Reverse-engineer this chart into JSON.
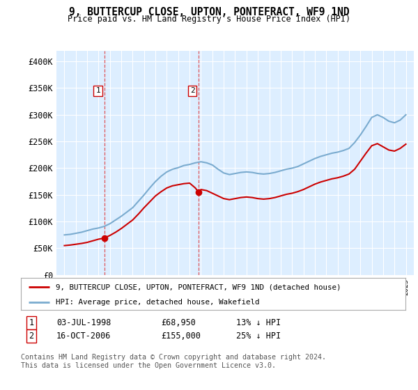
{
  "title": "9, BUTTERCUP CLOSE, UPTON, PONTEFRACT, WF9 1ND",
  "subtitle": "Price paid vs. HM Land Registry's House Price Index (HPI)",
  "sale1_date": 1998.5,
  "sale1_label": "1",
  "sale1_price": 68950,
  "sale1_text": "03-JUL-1998",
  "sale1_pct": "13% ↓ HPI",
  "sale2_date": 2006.79,
  "sale2_label": "2",
  "sale2_price": 155000,
  "sale2_text": "16-OCT-2006",
  "sale2_pct": "25% ↓ HPI",
  "legend_entry1": "9, BUTTERCUP CLOSE, UPTON, PONTEFRACT, WF9 1ND (detached house)",
  "legend_entry2": "HPI: Average price, detached house, Wakefield",
  "footnote": "Contains HM Land Registry data © Crown copyright and database right 2024.\nThis data is licensed under the Open Government Licence v3.0.",
  "ylim": [
    0,
    420000
  ],
  "yticks": [
    0,
    50000,
    100000,
    150000,
    200000,
    250000,
    300000,
    350000,
    400000
  ],
  "ylabels": [
    "£0",
    "£50K",
    "£100K",
    "£150K",
    "£200K",
    "£250K",
    "£300K",
    "£350K",
    "£400K"
  ],
  "hpi_color": "#7aabcf",
  "price_color": "#cc0000",
  "background_color": "#ddeeff",
  "grid_color": "#ffffff",
  "sale_line_color": "#ff6666",
  "years_hpi": [
    1995,
    1995.5,
    1996,
    1996.5,
    1997,
    1997.5,
    1998,
    1998.5,
    1999,
    1999.5,
    2000,
    2000.5,
    2001,
    2001.5,
    2002,
    2002.5,
    2003,
    2003.5,
    2004,
    2004.5,
    2005,
    2005.5,
    2006,
    2006.5,
    2007,
    2007.5,
    2008,
    2008.5,
    2009,
    2009.5,
    2010,
    2010.5,
    2011,
    2011.5,
    2012,
    2012.5,
    2013,
    2013.5,
    2014,
    2014.5,
    2015,
    2015.5,
    2016,
    2016.5,
    2017,
    2017.5,
    2018,
    2018.5,
    2019,
    2019.5,
    2020,
    2020.5,
    2021,
    2021.5,
    2022,
    2022.5,
    2023,
    2023.5,
    2024,
    2024.5,
    2025
  ],
  "hpi_values": [
    75000,
    76000,
    78000,
    80000,
    83000,
    86000,
    88000,
    91000,
    96000,
    103000,
    110000,
    118000,
    126000,
    138000,
    150000,
    163000,
    175000,
    185000,
    193000,
    198000,
    201000,
    205000,
    207000,
    210000,
    212000,
    210000,
    206000,
    198000,
    191000,
    188000,
    190000,
    192000,
    193000,
    192000,
    190000,
    189000,
    190000,
    192000,
    195000,
    198000,
    200000,
    203000,
    208000,
    213000,
    218000,
    222000,
    225000,
    228000,
    230000,
    233000,
    237000,
    248000,
    262000,
    278000,
    295000,
    300000,
    295000,
    288000,
    285000,
    290000,
    300000
  ],
  "years_price": [
    1995,
    1995.5,
    1996,
    1996.5,
    1997,
    1997.5,
    1998,
    1998.5,
    1999,
    1999.5,
    2000,
    2000.5,
    2001,
    2001.5,
    2002,
    2002.5,
    2003,
    2003.5,
    2004,
    2004.5,
    2005,
    2005.5,
    2006,
    2006.5,
    2006.79,
    2007,
    2007.5,
    2008,
    2008.5,
    2009,
    2009.5,
    2010,
    2010.5,
    2011,
    2011.5,
    2012,
    2012.5,
    2013,
    2013.5,
    2014,
    2014.5,
    2015,
    2015.5,
    2016,
    2016.5,
    2017,
    2017.5,
    2018,
    2018.5,
    2019,
    2019.5,
    2020,
    2020.5,
    2021,
    2021.5,
    2022,
    2022.5,
    2023,
    2023.5,
    2024,
    2024.5,
    2025
  ],
  "price_values": [
    55000,
    56000,
    57500,
    59000,
    61000,
    64000,
    67000,
    68950,
    74000,
    80000,
    87000,
    95000,
    103000,
    114000,
    126000,
    137000,
    148000,
    156000,
    163000,
    167000,
    169000,
    171000,
    172000,
    163000,
    155000,
    160000,
    158000,
    153000,
    148000,
    143000,
    141000,
    143000,
    145000,
    146000,
    145000,
    143000,
    142000,
    143000,
    145000,
    148000,
    151000,
    153000,
    156000,
    160000,
    165000,
    170000,
    174000,
    177000,
    180000,
    182000,
    185000,
    189000,
    198000,
    213000,
    228000,
    242000,
    246000,
    240000,
    234000,
    232000,
    237000,
    245000
  ]
}
